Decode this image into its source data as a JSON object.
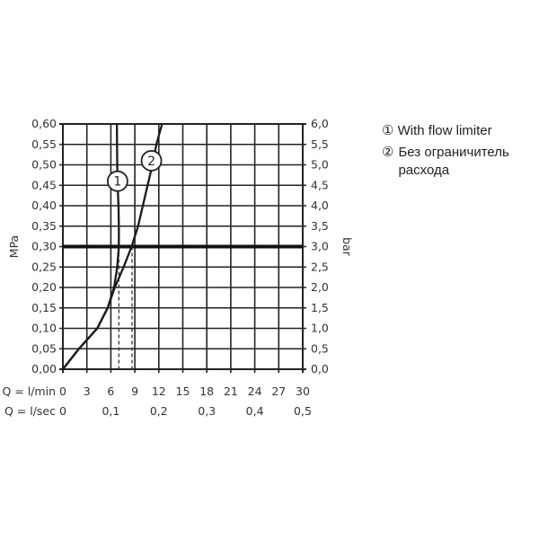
{
  "chart_data": {
    "type": "line",
    "xlabel": "Q = l/min",
    "x2label": "Q = l/sec",
    "ylabel": "MPa",
    "y2label": "bar",
    "xlim": [
      0,
      30
    ],
    "ylim": [
      0,
      0.6
    ],
    "grid": true,
    "x_ticks": [
      "0",
      "3",
      "6",
      "9",
      "12",
      "15",
      "18",
      "21",
      "24",
      "27",
      "30"
    ],
    "x2_ticks": [
      "0",
      "0,1",
      "0,2",
      "0,3",
      "0,4",
      "0,5"
    ],
    "y_ticks": [
      "0,00",
      "0,05",
      "0,10",
      "0,15",
      "0,20",
      "0,25",
      "0,30",
      "0,35",
      "0,40",
      "0,45",
      "0,50",
      "0,55",
      "0,60"
    ],
    "y2_ticks": [
      "0,0",
      "0,5",
      "1,0",
      "1,5",
      "2,0",
      "2,5",
      "3,0",
      "3,5",
      "4,0",
      "4,5",
      "5,0",
      "5,5",
      "6,0"
    ],
    "reference_line": {
      "y": 0.3
    },
    "series": [
      {
        "name": "1",
        "x": [
          0,
          2.0,
          4.3,
          5.6,
          6.4,
          6.8,
          7.0,
          7.0,
          6.95,
          6.85,
          6.8,
          6.75
        ],
        "y": [
          0,
          0.05,
          0.1,
          0.15,
          0.2,
          0.25,
          0.3,
          0.35,
          0.4,
          0.45,
          0.5,
          0.6
        ],
        "dashed_at": 7.0
      },
      {
        "name": "2",
        "x": [
          0,
          2.0,
          4.3,
          5.6,
          6.5,
          7.6,
          8.6,
          9.4,
          10.0,
          10.6,
          11.2,
          11.7,
          12.4
        ],
        "y": [
          0,
          0.05,
          0.1,
          0.15,
          0.2,
          0.25,
          0.3,
          0.35,
          0.4,
          0.45,
          0.5,
          0.55,
          0.6
        ],
        "dashed_at": 8.65
      }
    ],
    "legend": {
      "placement": "right",
      "items": [
        {
          "marker": "①",
          "label": "With flow limiter"
        },
        {
          "marker": "②",
          "label": "Без ограничитель расхода"
        }
      ]
    }
  }
}
